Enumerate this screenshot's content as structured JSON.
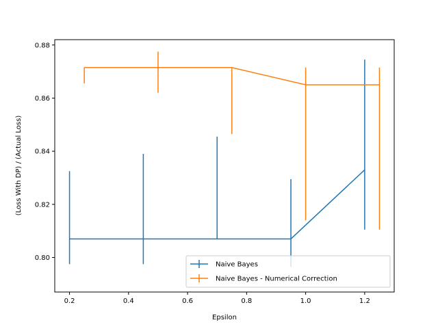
{
  "chart_data": {
    "type": "line",
    "title": "",
    "xlabel": "Epsilon",
    "ylabel": "(Loss With DP) / (Actual Loss)",
    "xlim": [
      0.15,
      1.3
    ],
    "ylim": [
      0.787,
      0.882
    ],
    "x_ticks": [
      0.2,
      0.4,
      0.6,
      0.8,
      1.0,
      1.2
    ],
    "x_tick_labels": [
      "0.2",
      "0.4",
      "0.6",
      "0.8",
      "1.0",
      "1.2"
    ],
    "y_ticks": [
      0.8,
      0.82,
      0.84,
      0.86,
      0.88
    ],
    "y_tick_labels": [
      "0.80",
      "0.82",
      "0.84",
      "0.86",
      "0.88"
    ],
    "grid": false,
    "legend_position": "lower-right",
    "series": [
      {
        "name": "Naive Bayes",
        "color": "#1f77b4",
        "x": [
          0.2,
          0.45,
          0.7,
          0.95,
          1.2
        ],
        "y": [
          0.807,
          0.807,
          0.807,
          0.807,
          0.833
        ],
        "err_low": [
          0.7975,
          0.7975,
          0.807,
          0.7965,
          0.8105
        ],
        "err_high": [
          0.8325,
          0.839,
          0.8455,
          0.8295,
          0.8745
        ]
      },
      {
        "name": "Naive Bayes - Numerical Correction",
        "color": "#ff7f0e",
        "x": [
          0.25,
          0.5,
          0.75,
          1.0,
          1.25
        ],
        "y": [
          0.8715,
          0.8715,
          0.8715,
          0.865,
          0.865
        ],
        "err_low": [
          0.8655,
          0.862,
          0.8465,
          0.814,
          0.8105
        ],
        "err_high": [
          0.8715,
          0.8775,
          0.8715,
          0.8715,
          0.8715
        ]
      }
    ]
  }
}
